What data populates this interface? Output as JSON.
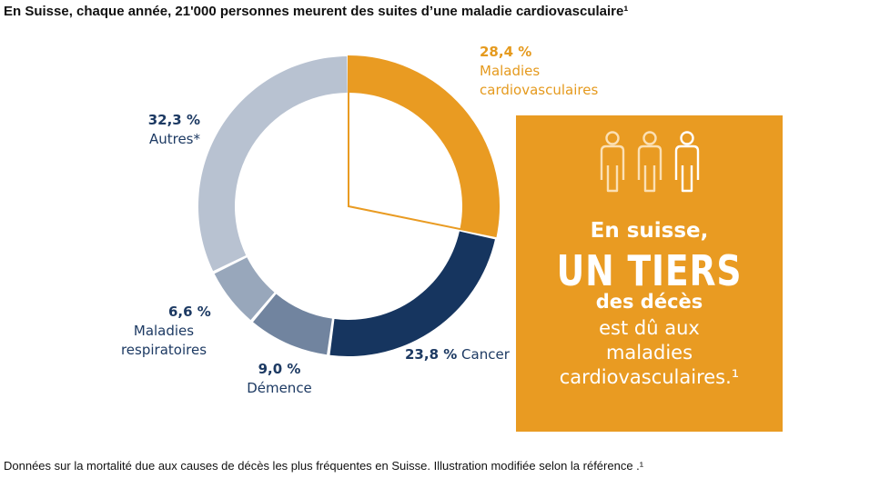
{
  "title": "En Suisse, chaque année, 21'000 personnes meurent des suites d’une maladie cardiovasculaire¹",
  "footnote": "Données sur la mortalité due aux causes de décès les plus fréquentes en Suisse. Illustration modifiée selon la référence .¹",
  "chart_data": {
    "type": "pie",
    "variant": "donut",
    "title": "En Suisse, chaque année, 21'000 personnes meurent des suites d’une maladie cardiovasculaire¹",
    "categories": [
      "Maladies cardiovasculaires",
      "Cancer",
      "Démence",
      "Maladies respiratoires",
      "Autres*"
    ],
    "values": [
      28.4,
      23.8,
      9.0,
      6.6,
      32.3
    ],
    "value_labels": [
      "28,4 %",
      "23,8 %",
      "9,0 %",
      "6,6 %",
      "32,3 %"
    ],
    "label_lines": [
      [
        "Maladies",
        "cardiovasculaires"
      ],
      [
        "Cancer"
      ],
      [
        "Démence"
      ],
      [
        "Maladies",
        "respiratoires"
      ],
      [
        "Autres*"
      ]
    ],
    "colors": [
      "#e99b22",
      "#16355f",
      "#71849f",
      "#98a7bb",
      "#b8c2d1"
    ],
    "highlighted": "Maladies cardiovasculaires",
    "start_angle_deg": 0,
    "direction": "clockwise"
  },
  "callout": {
    "line1": "En suisse,",
    "line2": "UN TIERS",
    "line3": "des décès",
    "line4": "est dû aux",
    "line5": "maladies",
    "line6": "cardiovasculaires.¹",
    "icons": [
      "person-icon",
      "person-icon",
      "person-icon"
    ],
    "background": "#e99b22"
  }
}
